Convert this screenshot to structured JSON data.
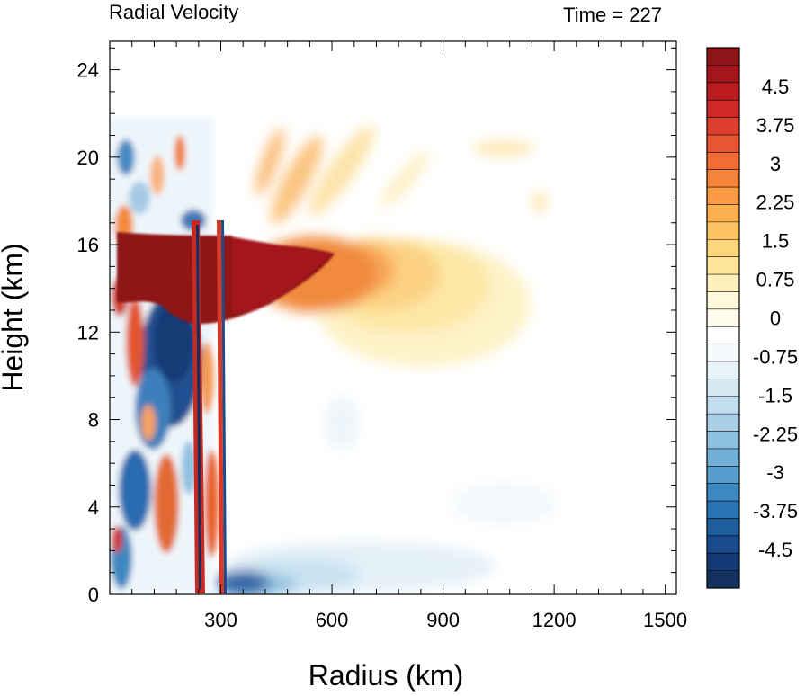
{
  "chart_data": {
    "type": "heatmap",
    "title": "Radial Velocity",
    "subtitle": "Time = 227",
    "xlabel": "Radius (km)",
    "ylabel": "Height (km)",
    "xlim": [
      0,
      1530
    ],
    "ylim": [
      0,
      25.3
    ],
    "x_ticks": [
      300,
      600,
      900,
      1200,
      1500
    ],
    "y_ticks": [
      0,
      4,
      8,
      12,
      16,
      20,
      24
    ],
    "colorbar": {
      "min": -5.25,
      "max": 5.25,
      "step": 0.25,
      "labels": [
        "4.5",
        "3.75",
        "3",
        "2.25",
        "1.5",
        "0.75",
        "0",
        "-0.75",
        "-1.5",
        "-2.25",
        "-3",
        "-3.75",
        "-4.5"
      ],
      "label_values": [
        4.5,
        3.75,
        3,
        2.25,
        1.5,
        0.75,
        0,
        -0.75,
        -1.5,
        -2.25,
        -3,
        -3.75,
        -4.5
      ],
      "colors_top_to_bottom": [
        "#8e1518",
        "#a5171c",
        "#bb1c20",
        "#cf2a27",
        "#df3f2e",
        "#e85631",
        "#f06d34",
        "#f5843a",
        "#f99b43",
        "#fbb04f",
        "#fcc361",
        "#fdd57a",
        "#fde49a",
        "#fef0bb",
        "#fff8da",
        "#fffcee",
        "#ffffff",
        "#f5f9fc",
        "#e8f2f9",
        "#d6e9f4",
        "#c1ddee",
        "#a9cfe6",
        "#8ec0df",
        "#72afd6",
        "#569ccc",
        "#3d88c0",
        "#2b73b2",
        "#205ea0",
        "#1a4b8c",
        "#163a75",
        "#13305f"
      ]
    },
    "features": [
      {
        "name": "upper outflow",
        "radius_km": [
          0,
          600
        ],
        "height_km": [
          12.5,
          16.5
        ],
        "value": 5.0
      },
      {
        "name": "outflow plume",
        "radius_km": [
          450,
          1100
        ],
        "height_km": [
          9,
          17
        ],
        "value": 1.5
      },
      {
        "name": "inflow layer",
        "radius_km": [
          0,
          1000
        ],
        "height_km": [
          0,
          2
        ],
        "value": -1.0
      },
      {
        "name": "mid-level inflow core",
        "radius_km": [
          100,
          220
        ],
        "height_km": [
          7,
          13
        ],
        "value": -4.5
      }
    ]
  }
}
